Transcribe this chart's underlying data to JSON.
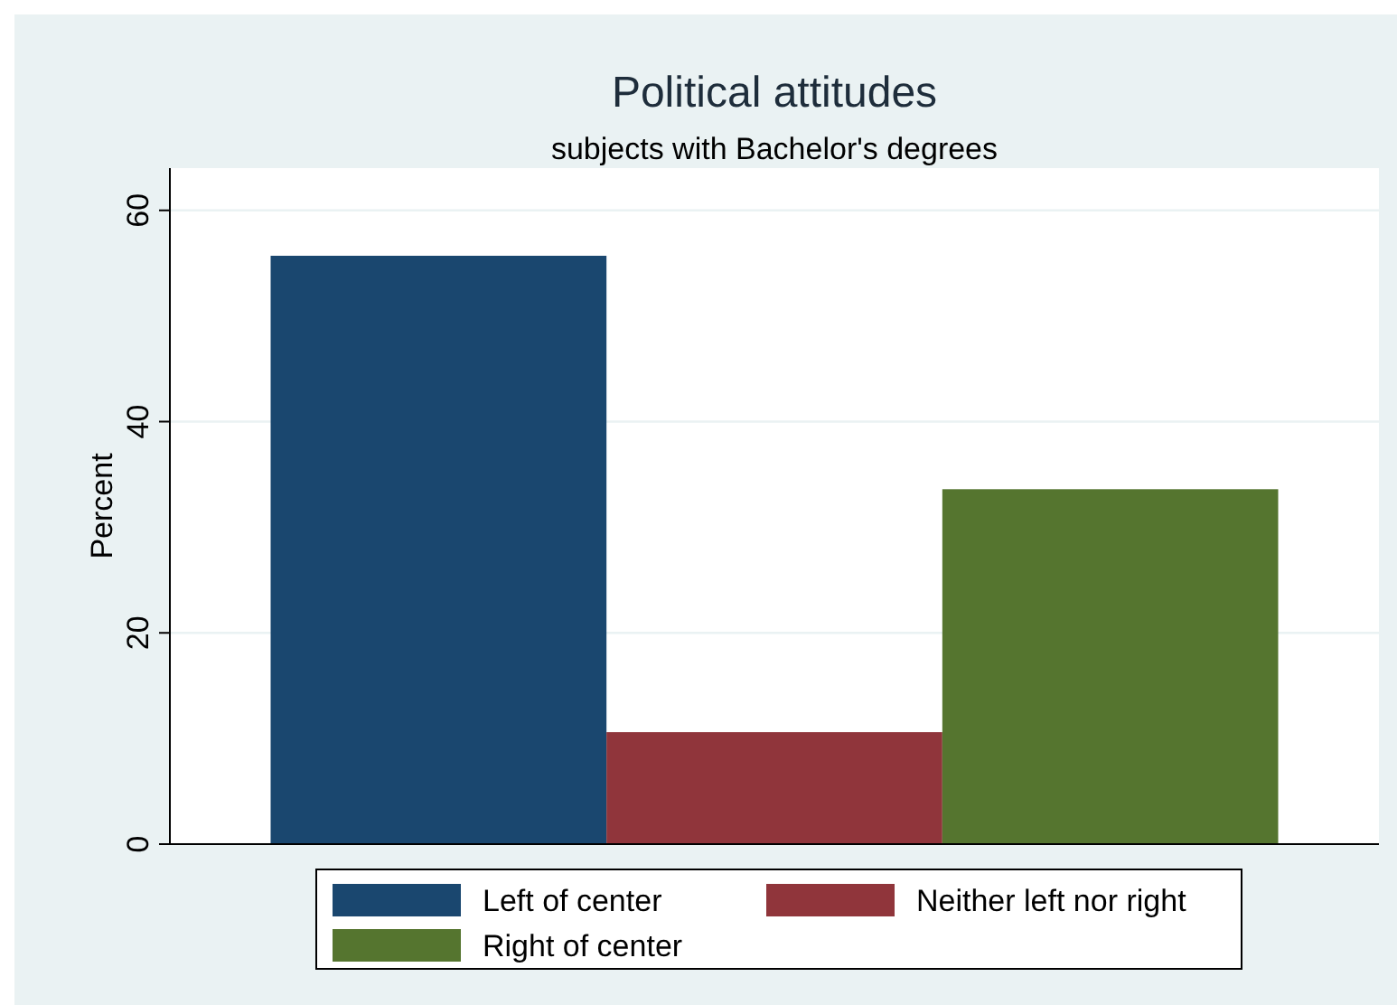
{
  "chart_data": {
    "type": "bar",
    "title": "Political attitudes",
    "subtitle": "subjects with Bachelor's degrees",
    "ylabel": "Percent",
    "categories": [
      null
    ],
    "series": [
      {
        "name": "Left of center",
        "color": "#1a476f",
        "values": [
          55.7
        ]
      },
      {
        "name": "Neither left nor right",
        "color": "#90353b",
        "values": [
          10.6
        ]
      },
      {
        "name": "Right of center",
        "color": "#55752f",
        "values": [
          33.6
        ]
      }
    ],
    "ylim": [
      0,
      64
    ],
    "yticks": [
      0,
      20,
      40,
      60
    ],
    "grid": "y",
    "legend": "bottom"
  }
}
